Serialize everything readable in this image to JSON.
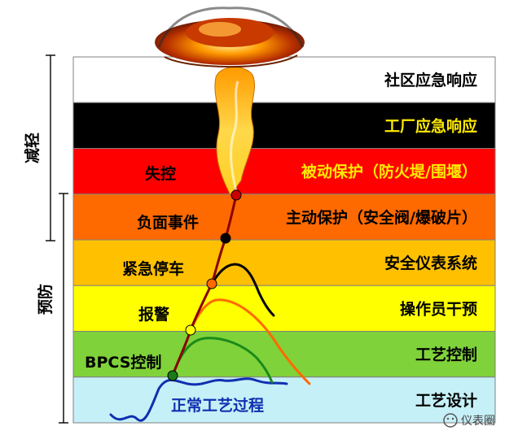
{
  "layers": [
    {
      "label": "社区应急响应",
      "fill": "#ffffff",
      "text_color": "#000000"
    },
    {
      "label": "工厂应急响应",
      "fill": "#000000",
      "text_color": "#ffeb00"
    },
    {
      "label": "被动保护（防火堤/围堰）",
      "fill": "#ff0000",
      "text_color": "#ffeb00"
    },
    {
      "label": "主动保护（安全阀/爆破片）",
      "fill": "#ff6a00",
      "text_color": "#000000"
    },
    {
      "label": "安全仪表系统",
      "fill": "#ffc000",
      "text_color": "#000000"
    },
    {
      "label": "操作员干预",
      "fill": "#ffff00",
      "text_color": "#000000"
    },
    {
      "label": "工艺控制",
      "fill": "#7fd23a",
      "text_color": "#000000"
    },
    {
      "label": "工艺设计",
      "fill": "#c6f0f7",
      "text_color": "#000000"
    }
  ],
  "events": [
    {
      "label": "失控",
      "color": "#000000"
    },
    {
      "label": "负面事件",
      "color": "#000000"
    },
    {
      "label": "紧急停车",
      "color": "#000000"
    },
    {
      "label": "报警",
      "color": "#000000"
    },
    {
      "label": "BPCS控制",
      "color": "#000000"
    },
    {
      "label": "正常工艺过程",
      "color": "#1030b0"
    }
  ],
  "side_labels": {
    "mitigation": "减轻",
    "prevention": "预防"
  },
  "watermark": "仪表圈",
  "colors": {
    "event_dots": [
      "#cc0000",
      "#000000",
      "#ff6a00",
      "#ffff00",
      "#1a7a1a"
    ],
    "curves": [
      "#000000",
      "#ff6a00",
      "#1a8a1a",
      "#1030b0"
    ]
  }
}
